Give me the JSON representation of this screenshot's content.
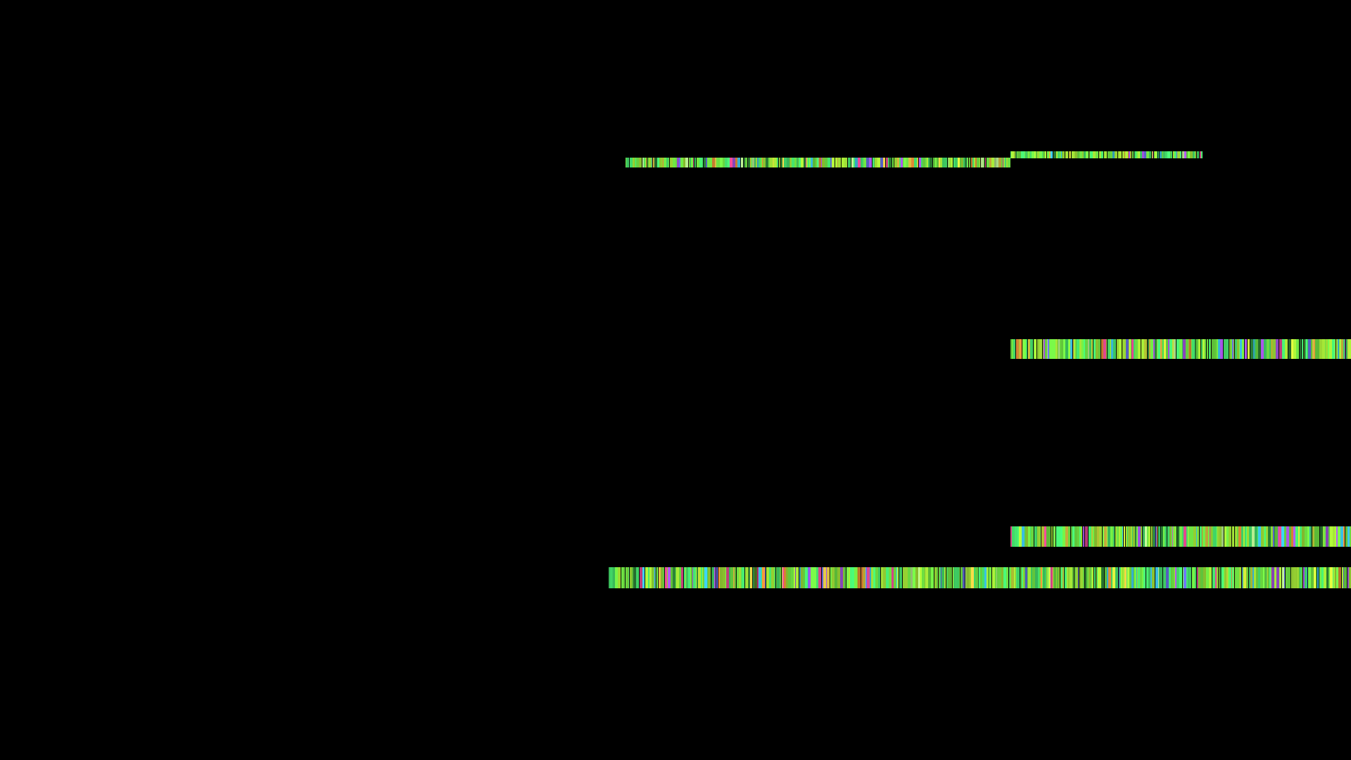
{
  "screen": {
    "background": "#000000",
    "state": "corrupted video frame"
  },
  "palette": [
    "#7CFF4A",
    "#4CFF7A",
    "#B6FF3C",
    "#E8FF40",
    "#FFE04A",
    "#FF9C3A",
    "#FF4FA0",
    "#B85CFF",
    "#6F7BFF",
    "#3FD8FF",
    "#2E8B3A",
    "#C6FF9A"
  ],
  "bars": [
    {
      "id": "bar-1",
      "name": "glitch-bar-top-left",
      "seed": 11
    },
    {
      "id": "bar-2",
      "name": "glitch-bar-top-right",
      "seed": 23
    },
    {
      "id": "bar-3",
      "name": "glitch-bar-middle",
      "seed": 37
    },
    {
      "id": "bar-4",
      "name": "glitch-bar-lower-right",
      "seed": 51
    },
    {
      "id": "bar-5",
      "name": "glitch-bar-bottom-wide",
      "seed": 67
    }
  ]
}
